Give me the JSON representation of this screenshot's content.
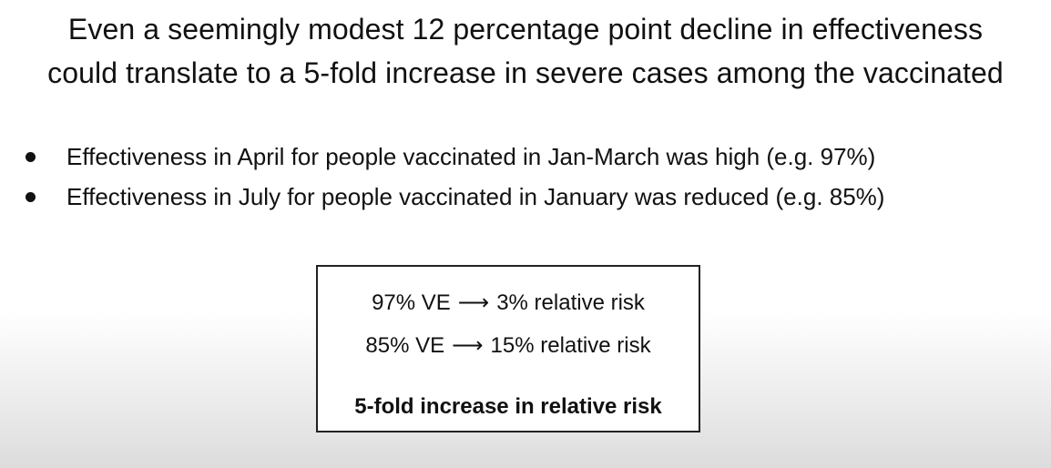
{
  "slide": {
    "title_lines": [
      "Even a seemingly modest 12 percentage point decline in effectiveness",
      "could translate to a 5-fold increase in severe cases among the vaccinated"
    ],
    "bullets": [
      "Effectiveness in April for people vaccinated in Jan-March was high (e.g. 97%)",
      "Effectiveness in July for people vaccinated in January was reduced (e.g. 85%)"
    ],
    "box": {
      "rows": [
        {
          "left": "97% VE",
          "arrow": "⟶",
          "right": "3% relative risk"
        },
        {
          "left": "85% VE",
          "arrow": "⟶",
          "right": "15% relative risk"
        }
      ],
      "conclusion": "5-fold increase in relative risk"
    }
  }
}
